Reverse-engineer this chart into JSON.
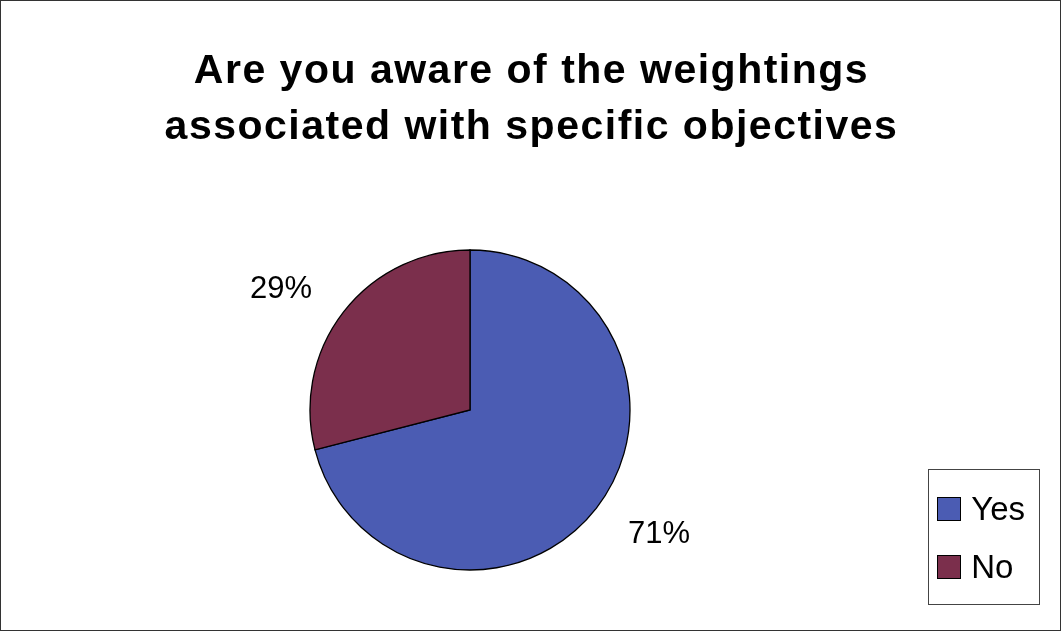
{
  "chart_data": {
    "type": "pie",
    "title": "Are you aware of the weightings associated with specific objectives",
    "categories": [
      "Yes",
      "No"
    ],
    "values": [
      71,
      29
    ],
    "colors": [
      "#4b5cb3",
      "#7b2f4c"
    ],
    "value_labels": [
      "71%",
      "29%"
    ],
    "legend": "bottom right"
  }
}
